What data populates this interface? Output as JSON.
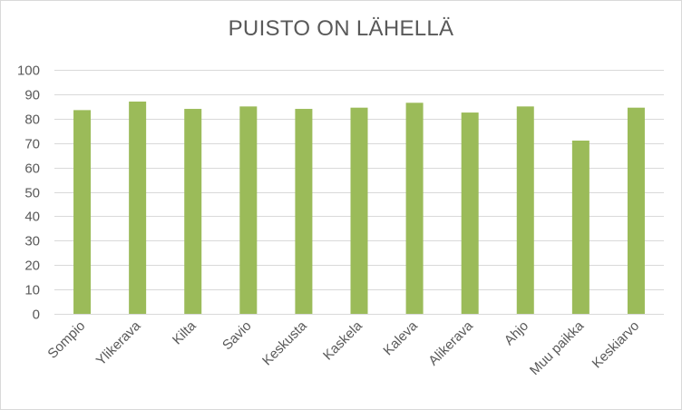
{
  "chart_data": {
    "type": "bar",
    "title": "PUISTO ON LÄHELLÄ",
    "xlabel": "",
    "ylabel": "",
    "categories": [
      "Sompio",
      "Ylikerava",
      "Kilta",
      "Savio",
      "Keskusta",
      "Kaskela",
      "Kaleva",
      "Alikerava",
      "Ahjo",
      "Muu paikka",
      "Keskiarvo"
    ],
    "values": [
      83.5,
      87,
      84,
      85,
      84,
      84.5,
      86.5,
      82.5,
      85,
      71,
      84.5
    ],
    "ylim": [
      0,
      100
    ],
    "yticks": [
      0,
      10,
      20,
      30,
      40,
      50,
      60,
      70,
      80,
      90,
      100
    ],
    "grid": true,
    "legend": "none",
    "bar_color": "#9bbb59",
    "grid_color": "#d9d9d9",
    "text_color": "#595959"
  }
}
